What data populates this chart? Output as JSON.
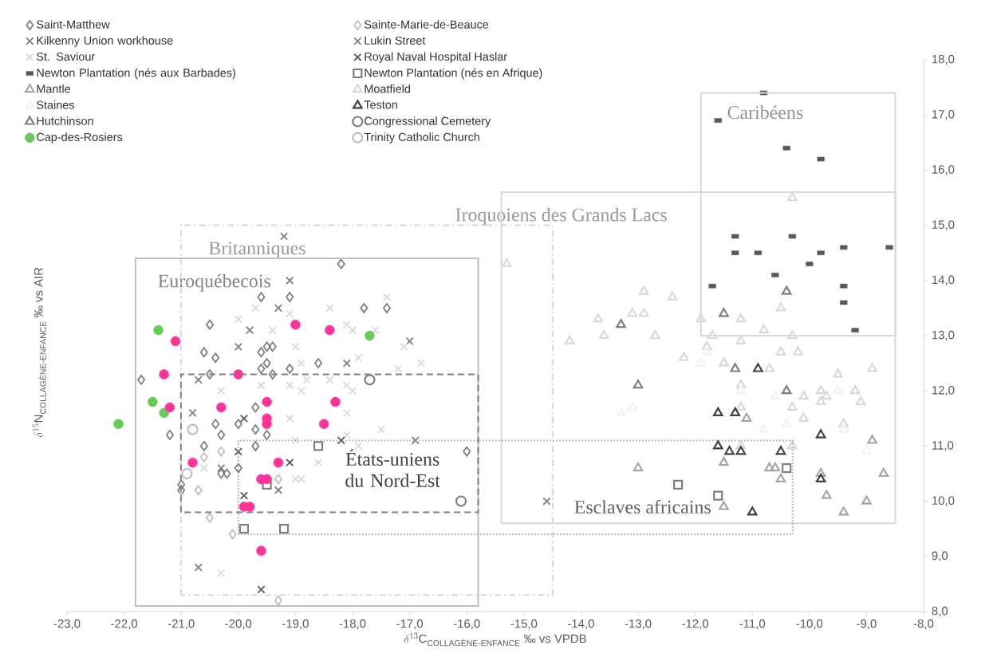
{
  "chart_data": {
    "type": "scatter",
    "xlabel": "\\delta^{13}\\textrm{C}_{\\textrm{COLLAGÈNE-ENFANCE}}\\ \\textrm{‰ vs VPDB}",
    "ylabel": "\\delta^{15}\\textrm{N}_{\\textrm{COLLAGÈNE-ENFANCE}}\\ \\textrm{‰ vs AIR}",
    "xlim": [
      -23,
      -8
    ],
    "ylim": [
      8,
      18
    ],
    "xticks": [
      {
        "value": -23,
        "label": "-23,0"
      },
      {
        "value": -22,
        "label": "-22,0"
      },
      {
        "value": -21,
        "label": "-21,0"
      },
      {
        "value": -20,
        "label": "-20,0"
      },
      {
        "value": -19,
        "label": "-19,0"
      },
      {
        "value": -18,
        "label": "-18,0"
      },
      {
        "value": -17,
        "label": "-17,0"
      },
      {
        "value": -16,
        "label": "-16,0"
      },
      {
        "value": -15,
        "label": "-15,0"
      },
      {
        "value": -14,
        "label": "-14,0"
      },
      {
        "value": -13,
        "label": "-13,0"
      },
      {
        "value": -12,
        "label": "-12,0"
      },
      {
        "value": -11,
        "label": "-11,0"
      },
      {
        "value": -10,
        "label": "-10,0"
      },
      {
        "value": -9,
        "label": "-9,0"
      },
      {
        "value": -8,
        "label": "-8,0"
      }
    ],
    "yticks": [
      {
        "value": 8,
        "label": "8,0"
      },
      {
        "value": 9,
        "label": "9,0"
      },
      {
        "value": 10,
        "label": "10,0"
      },
      {
        "value": 11,
        "label": "11,0"
      },
      {
        "value": 12,
        "label": "12,0"
      },
      {
        "value": 13,
        "label": "13,0"
      },
      {
        "value": 14,
        "label": "14,0"
      },
      {
        "value": 15,
        "label": "15,0"
      },
      {
        "value": 16,
        "label": "16,0"
      },
      {
        "value": 17,
        "label": "17,0"
      },
      {
        "value": 18,
        "label": "18,0"
      }
    ],
    "legend": "top left",
    "series": [
      {
        "name": "Saint-Matthew",
        "color": "#7f7f7f",
        "marker": "diamond",
        "x": [
          -19.6,
          -19.1,
          -20.5,
          -20.6,
          -20.4,
          -21.7,
          -20.5,
          -19.6,
          -19.5,
          -19.4,
          -19.5,
          -19.6,
          -19.1,
          -19.4,
          -18.2,
          -17.8,
          -17.4,
          -18.6,
          -19.7,
          -20.4,
          -20.3,
          -20.0,
          -19.7,
          -19.7,
          -19.5,
          -20.6,
          -20.2,
          -20.3,
          -20.0,
          -21.0,
          -21.0,
          -21.2,
          -16.0
        ],
        "values": [
          13.7,
          13.7,
          13.2,
          12.7,
          12.6,
          12.2,
          12.3,
          12.7,
          12.8,
          12.8,
          12.5,
          12.4,
          12.4,
          12.3,
          14.3,
          13.5,
          13.5,
          12.5,
          11.7,
          11.4,
          11.2,
          11.4,
          11.3,
          11.0,
          11.2,
          11.0,
          10.5,
          10.5,
          10.6,
          10.3,
          10.2,
          11.2,
          10.9
        ]
      },
      {
        "name": "Sainte-Marie-de-Beauce",
        "color": "#bfbfbf",
        "marker": "diamond",
        "x": [
          -20.3,
          -20.7,
          -20.5,
          -20.1,
          -19.3,
          -20.6,
          -19.3
        ],
        "values": [
          10.9,
          10.2,
          9.7,
          9.4,
          8.2,
          10.8,
          10.4
        ]
      },
      {
        "name": "Kilkenny Union workhouse",
        "color": "#7f7f7f",
        "marker": "cross",
        "x": [
          -19.2,
          -19.1,
          -19.3,
          -20.0,
          -20.7,
          -20.7,
          -19.3,
          -18.1,
          -20.3
        ],
        "values": [
          14.8,
          14.0,
          13.5,
          12.8,
          12.2,
          8.8,
          10.2,
          12.5,
          10.6
        ]
      },
      {
        "name": "Lukin Street",
        "color": "#7f7f7f",
        "marker": "cross",
        "x": [
          -19.8,
          -17.0,
          -16.9,
          -14.6,
          -20.8
        ],
        "values": [
          13.1,
          12.9,
          11.1,
          10.0,
          11.6
        ]
      },
      {
        "name": "St. Saviour",
        "color": "#d9d9d9",
        "marker": "cross",
        "x": [
          -19.7,
          -19.4,
          -20.0,
          -19.1,
          -20.3,
          -19.6,
          -19.1,
          -17.4,
          -18.4,
          -18.1,
          -18.0,
          -17.6,
          -17.1,
          -16.8,
          -17.2,
          -17.9,
          -19.0,
          -18.9,
          -18.8,
          -18.4,
          -18.1,
          -18.0,
          -18.9,
          -18.1,
          -17.5,
          -17.9,
          -18.6,
          -18.9,
          -18.1,
          -19.1,
          -19.0,
          -19.0,
          -20.3,
          -20.6
        ],
        "values": [
          13.5,
          13.1,
          13.3,
          13.4,
          12.0,
          12.1,
          12.1,
          13.7,
          13.5,
          13.2,
          13.1,
          13.1,
          12.8,
          12.5,
          12.4,
          12.6,
          12.8,
          12.5,
          12.2,
          12.2,
          12.1,
          12.0,
          12.0,
          11.6,
          11.3,
          11.0,
          10.7,
          10.4,
          11.2,
          11.5,
          11.1,
          10.4,
          8.7,
          10.6
        ]
      },
      {
        "name": "Royal Naval Hospital Haslar",
        "color": "#595959",
        "marker": "cross",
        "x": [
          -19.6,
          -19.9,
          -19.1,
          -20.0,
          -19.9,
          -18.2
        ],
        "values": [
          8.4,
          10.1,
          10.7,
          10.9,
          11.5,
          11.1
        ]
      },
      {
        "name": "Newton Plantation (nés aux Barbades)",
        "color": "#595959",
        "marker": "square",
        "x": [
          -11.6,
          -10.8,
          -10.4,
          -9.8,
          -11.3,
          -11.3,
          -10.9,
          -10.3,
          -9.8,
          -9.4,
          -8.6,
          -10.0,
          -10.6,
          -11.7,
          -9.4,
          -9.4,
          -9.2
        ],
        "values": [
          16.9,
          17.4,
          16.4,
          16.2,
          14.8,
          14.5,
          14.5,
          14.8,
          14.5,
          14.6,
          14.6,
          14.3,
          14.1,
          13.9,
          13.9,
          13.6,
          13.1
        ]
      },
      {
        "name": "Newton Plantation (nés en Afrique)",
        "color": "#7f7f7f",
        "marker": "square",
        "x": [
          -18.6,
          -19.9,
          -19.2,
          -19.5,
          -12.3,
          -11.6,
          -10.4
        ],
        "values": [
          11.0,
          9.5,
          9.5,
          10.3,
          10.3,
          10.1,
          10.6
        ]
      },
      {
        "name": "Mantle",
        "color": "#a6a6a6",
        "marker": "triangle",
        "x": [
          -13.0,
          -11.5,
          -11.5,
          -8.9,
          -9.8,
          -9.7,
          -9.0,
          -9.4,
          -8.7,
          -10.5,
          -10.7,
          -10.6,
          -11.1
        ],
        "values": [
          10.6,
          10.7,
          9.9,
          11.1,
          10.5,
          10.1,
          10.0,
          9.8,
          10.5,
          10.4,
          10.6,
          10.6,
          11.5
        ]
      },
      {
        "name": "Moatfield",
        "color": "#d9d9d9",
        "marker": "triangle",
        "x": [
          -15.3,
          -14.2,
          -13.7,
          -13.6,
          -13.1,
          -12.9,
          -12.9,
          -12.4,
          -12.7,
          -11.9,
          -12.2,
          -11.8,
          -11.7,
          -11.5,
          -10.3,
          -10.5,
          -11.2,
          -10.8,
          -10.3,
          -11.2,
          -10.5,
          -10.2,
          -10.7,
          -9.5,
          -8.9,
          -11.2,
          -10.1,
          -9.8,
          -9.8,
          -9.2,
          -9.1,
          -9.7,
          -10.3,
          -10.1,
          -11.2,
          -9.4,
          -10.3,
          -11.2
        ],
        "values": [
          14.3,
          12.9,
          13.3,
          13.0,
          13.4,
          13.4,
          13.8,
          13.7,
          13.0,
          13.3,
          12.6,
          12.8,
          13.0,
          12.5,
          15.5,
          13.5,
          13.3,
          13.1,
          13.0,
          12.9,
          12.7,
          12.7,
          12.4,
          12.3,
          12.4,
          12.1,
          11.9,
          12.0,
          11.8,
          12.0,
          11.8,
          11.9,
          11.7,
          11.5,
          11.7,
          11.4,
          11.0,
          11.0
        ]
      },
      {
        "name": "Staines",
        "color": "#f2f2f2",
        "marker": "triangle",
        "x": [
          -13.3,
          -13.1,
          -11.9,
          -11.8,
          -10.6,
          -9.5,
          -10.4,
          -10.8,
          -9.4,
          -9.0,
          -11.2
        ],
        "values": [
          11.6,
          11.7,
          12.5,
          12.7,
          11.9,
          12.0,
          11.4,
          11.3,
          11.3,
          10.9,
          12.0
        ]
      },
      {
        "name": "Teston",
        "color": "#404040",
        "marker": "triangle",
        "x": [
          -11.6,
          -11.3,
          -11.6,
          -11.4,
          -11.2,
          -10.9,
          -10.5,
          -9.8,
          -9.8,
          -11.0
        ],
        "values": [
          11.6,
          11.6,
          11.0,
          10.9,
          10.9,
          12.4,
          10.9,
          11.2,
          10.4,
          9.8
        ]
      },
      {
        "name": "Hutchinson",
        "color": "#7f7f7f",
        "marker": "triangle",
        "x": [
          -13.3,
          -13.0,
          -11.5,
          -11.3,
          -10.4,
          -10.4
        ],
        "values": [
          13.2,
          12.1,
          13.4,
          12.4,
          13.8,
          12.0
        ]
      },
      {
        "name": "Congressional Cemetery",
        "color": "#7f7f7f",
        "marker": "open circle",
        "x": [
          -17.7,
          -16.1
        ],
        "values": [
          12.2,
          10.0
        ]
      },
      {
        "name": "Cap-des-Rosiers",
        "color": "#66cc55",
        "marker": "circle",
        "x": [
          -22.1,
          -21.4,
          -21.5,
          -21.3,
          -17.7
        ],
        "values": [
          11.4,
          13.1,
          11.8,
          11.6,
          13.0
        ]
      },
      {
        "name": "Trinity Catholic Church",
        "color": "#bfbfbf",
        "marker": "open circle",
        "x": [
          -20.8,
          -20.9
        ],
        "values": [
          11.3,
          10.5
        ]
      },
      {
        "color": "#ff3399",
        "marker": "circle",
        "x": [
          -21.1,
          -21.3,
          -21.2,
          -20.0,
          -20.3,
          -19.5,
          -19.5,
          -19.5,
          -19.0,
          -18.4,
          -18.3,
          -18.5,
          -20.8,
          -19.3,
          -19.5,
          -19.6,
          -19.8,
          -19.9,
          -19.6
        ],
        "values": [
          12.9,
          12.3,
          11.7,
          12.3,
          11.7,
          11.8,
          11.5,
          11.4,
          13.2,
          13.1,
          11.8,
          11.4,
          10.7,
          10.7,
          10.4,
          10.4,
          9.9,
          9.9,
          9.1
        ]
      }
    ],
    "annotations": [
      "Caribéens",
      "Iroquoiens des Grands Lacs",
      "Britanniques",
      "Euroquébecois",
      "États-uniens du Nord-Est",
      "Esclaves africains"
    ]
  }
}
